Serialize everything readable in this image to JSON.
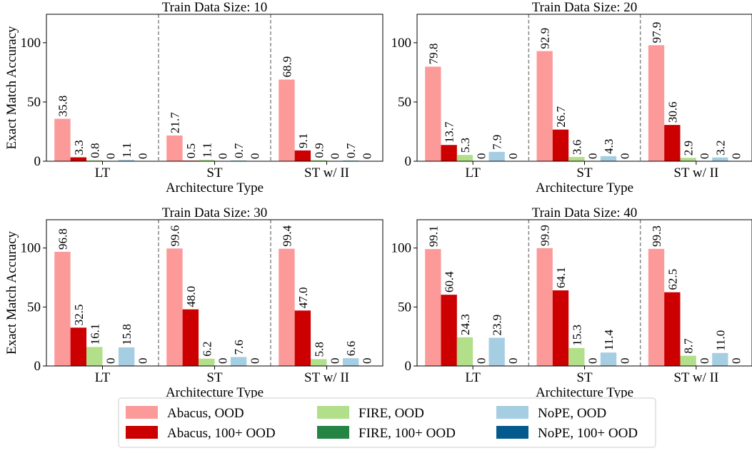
{
  "chart_data": {
    "type": "bar",
    "categories": [
      "LT",
      "ST",
      "ST w/ II"
    ],
    "xlabel": "Architecture Type",
    "ylabel": "Exact Match Accuracy",
    "ylim": [
      0,
      124
    ],
    "yticks": [
      0,
      50,
      100
    ],
    "grid": false,
    "legend": {
      "placement": "bottom-center",
      "entries": [
        {
          "label": "Abacus, OOD",
          "color": "#fb9a99"
        },
        {
          "label": "FIRE, OOD",
          "color": "#b2df8a"
        },
        {
          "label": "NoPE, OOD",
          "color": "#a6cee3"
        },
        {
          "label": "Abacus, 100+ OOD",
          "color": "#cc0000"
        },
        {
          "label": "FIRE, 100+ OOD",
          "color": "#238443"
        },
        {
          "label": "NoPE, 100+ OOD",
          "color": "#045a8d"
        }
      ]
    },
    "panels": [
      {
        "title": "Train Data Size: 10",
        "series": [
          {
            "name": "Abacus, OOD",
            "color": "#fb9a99",
            "values": [
              35.8,
              21.7,
              68.9
            ],
            "labels": [
              "35.8",
              "21.7",
              "68.9"
            ]
          },
          {
            "name": "Abacus, 100+ OOD",
            "color": "#cc0000",
            "values": [
              3.3,
              0.5,
              9.1
            ],
            "labels": [
              "3.3",
              "0.5",
              "9.1"
            ]
          },
          {
            "name": "FIRE, OOD",
            "color": "#b2df8a",
            "values": [
              0.8,
              1.1,
              0.9
            ],
            "labels": [
              "0.8",
              "1.1",
              "0.9"
            ]
          },
          {
            "name": "FIRE, 100+ OOD",
            "color": "#238443",
            "values": [
              0,
              0,
              0
            ],
            "labels": [
              "0",
              "0",
              "0"
            ]
          },
          {
            "name": "NoPE, OOD",
            "color": "#a6cee3",
            "values": [
              1.1,
              0.7,
              0.7
            ],
            "labels": [
              "1.1",
              "0.7",
              "0.7"
            ]
          },
          {
            "name": "NoPE, 100+ OOD",
            "color": "#045a8d",
            "values": [
              0,
              0,
              0
            ],
            "labels": [
              "0",
              "0",
              "0"
            ]
          }
        ]
      },
      {
        "title": "Train Data Size: 20",
        "series": [
          {
            "name": "Abacus, OOD",
            "color": "#fb9a99",
            "values": [
              79.8,
              92.9,
              97.9
            ],
            "labels": [
              "79.8",
              "92.9",
              "97.9"
            ]
          },
          {
            "name": "Abacus, 100+ OOD",
            "color": "#cc0000",
            "values": [
              13.7,
              26.7,
              30.6
            ],
            "labels": [
              "13.7",
              "26.7",
              "30.6"
            ]
          },
          {
            "name": "FIRE, OOD",
            "color": "#b2df8a",
            "values": [
              5.3,
              3.6,
              2.9
            ],
            "labels": [
              "5.3",
              "3.6",
              "2.9"
            ]
          },
          {
            "name": "FIRE, 100+ OOD",
            "color": "#238443",
            "values": [
              0,
              0,
              0
            ],
            "labels": [
              "0",
              "0",
              "0"
            ]
          },
          {
            "name": "NoPE, OOD",
            "color": "#a6cee3",
            "values": [
              7.9,
              4.3,
              3.2
            ],
            "labels": [
              "7.9",
              "4.3",
              "3.2"
            ]
          },
          {
            "name": "NoPE, 100+ OOD",
            "color": "#045a8d",
            "values": [
              0,
              0,
              0
            ],
            "labels": [
              "0",
              "0",
              "0"
            ]
          }
        ]
      },
      {
        "title": "Train Data Size: 30",
        "series": [
          {
            "name": "Abacus, OOD",
            "color": "#fb9a99",
            "values": [
              96.8,
              99.6,
              99.4
            ],
            "labels": [
              "96.8",
              "99.6",
              "99.4"
            ]
          },
          {
            "name": "Abacus, 100+ OOD",
            "color": "#cc0000",
            "values": [
              32.5,
              48.0,
              47.0
            ],
            "labels": [
              "32.5",
              "48.0",
              "47.0"
            ]
          },
          {
            "name": "FIRE, OOD",
            "color": "#b2df8a",
            "values": [
              16.1,
              6.2,
              5.8
            ],
            "labels": [
              "16.1",
              "6.2",
              "5.8"
            ]
          },
          {
            "name": "FIRE, 100+ OOD",
            "color": "#238443",
            "values": [
              0,
              0,
              0
            ],
            "labels": [
              "0",
              "0",
              "0"
            ]
          },
          {
            "name": "NoPE, OOD",
            "color": "#a6cee3",
            "values": [
              15.8,
              7.6,
              6.6
            ],
            "labels": [
              "15.8",
              "7.6",
              "6.6"
            ]
          },
          {
            "name": "NoPE, 100+ OOD",
            "color": "#045a8d",
            "values": [
              0,
              0,
              0
            ],
            "labels": [
              "0",
              "0",
              "0"
            ]
          }
        ]
      },
      {
        "title": "Train Data Size: 40",
        "series": [
          {
            "name": "Abacus, OOD",
            "color": "#fb9a99",
            "values": [
              99.1,
              99.9,
              99.3
            ],
            "labels": [
              "99.1",
              "99.9",
              "99.3"
            ]
          },
          {
            "name": "Abacus, 100+ OOD",
            "color": "#cc0000",
            "values": [
              60.4,
              64.1,
              62.5
            ],
            "labels": [
              "60.4",
              "64.1",
              "62.5"
            ]
          },
          {
            "name": "FIRE, OOD",
            "color": "#b2df8a",
            "values": [
              24.3,
              15.3,
              8.7
            ],
            "labels": [
              "24.3",
              "15.3",
              "8.7"
            ]
          },
          {
            "name": "FIRE, 100+ OOD",
            "color": "#238443",
            "values": [
              0,
              0,
              0
            ],
            "labels": [
              "0",
              "0",
              "0"
            ]
          },
          {
            "name": "NoPE, OOD",
            "color": "#a6cee3",
            "values": [
              23.9,
              11.4,
              11.0
            ],
            "labels": [
              "23.9",
              "11.4",
              "11.0"
            ]
          },
          {
            "name": "NoPE, 100+ OOD",
            "color": "#045a8d",
            "values": [
              0,
              0,
              0
            ],
            "labels": [
              "0",
              "0",
              "0"
            ]
          }
        ]
      }
    ]
  }
}
